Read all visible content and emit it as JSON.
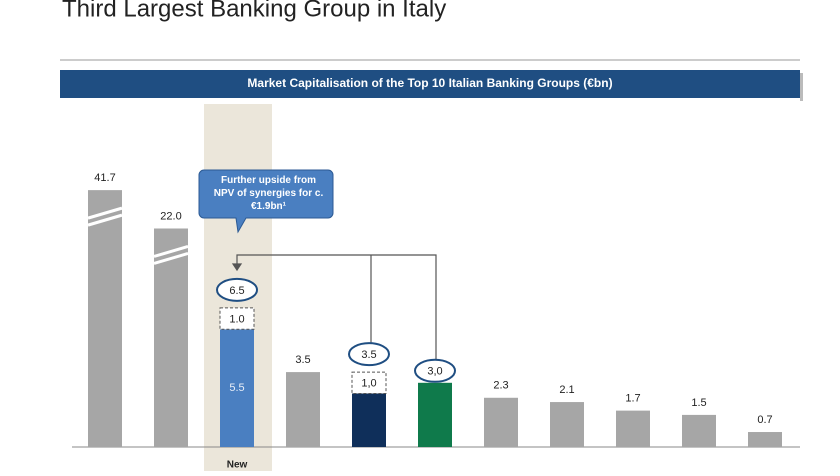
{
  "chart_data": {
    "type": "bar",
    "page_title": "Third Largest Banking Group in Italy",
    "title": "Market Capitalisation of the Top 10 Italian Banking Groups (€bn)",
    "annotation": "Further upside from NPV of synergies for c.€1.9bn¹",
    "categories": [
      null,
      null,
      "New",
      null,
      null,
      null,
      null,
      null,
      null,
      null,
      null
    ],
    "values": [
      41.7,
      22.0,
      5.5,
      3.5,
      2.5,
      3.0,
      2.3,
      2.1,
      1.7,
      1.5,
      0.7
    ],
    "value_labels": [
      "41.7",
      "22.0",
      "5.5",
      "3.5",
      null,
      "3,0",
      "2.3",
      "2.1",
      "1.7",
      "1.5",
      "0.7"
    ],
    "colors": [
      "#a6a6a6",
      "#a6a6a6",
      "#4a7fc1",
      "#a6a6a6",
      "#0f2f5a",
      "#0f7a4b",
      "#a6a6a6",
      "#a6a6a6",
      "#a6a6a6",
      "#a6a6a6",
      "#a6a6a6"
    ],
    "extra": [
      null,
      null,
      1.0,
      null,
      1.0,
      null,
      null,
      null,
      null,
      null,
      null
    ],
    "extra_labels": [
      null,
      null,
      "1.0",
      null,
      "1,0",
      null,
      null,
      null,
      null,
      null,
      null
    ],
    "totals": [
      null,
      null,
      6.5,
      null,
      3.5,
      null,
      null,
      null,
      null,
      null,
      null
    ],
    "circled": [
      5
    ],
    "broken_axis": true
  }
}
